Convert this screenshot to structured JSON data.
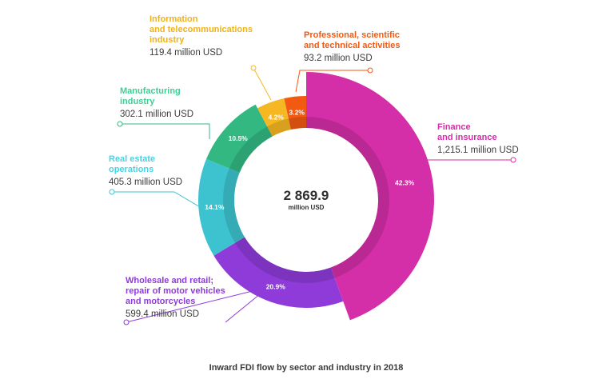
{
  "chart_data": {
    "type": "donut",
    "title": "Inward FDI flow by sector and industry in 2018",
    "total": {
      "value": "2 869.9",
      "unit": "million USD"
    },
    "segments": [
      {
        "name_lines": [
          "Finance",
          "and insurance"
        ],
        "value": 1215.1,
        "value_label": "1,215.1 million USD",
        "percent": 42.3,
        "percent_label": "42.3%",
        "color": "#d42ea8"
      },
      {
        "name_lines": [
          "Wholesale and retail;",
          "repair of motor vehicles",
          "and motorcycles"
        ],
        "value": 599.4,
        "value_label": "599.4 million USD",
        "percent": 20.9,
        "percent_label": "20.9%",
        "color": "#8e3bd9"
      },
      {
        "name_lines": [
          "Real estate",
          "operations"
        ],
        "value": 405.3,
        "value_label": "405.3 million USD",
        "percent": 14.1,
        "percent_label": "14.1%",
        "color": "#3dc3cf"
      },
      {
        "name_lines": [
          "Manufacturing",
          "industry"
        ],
        "value": 302.1,
        "value_label": "302.1 million USD",
        "percent": 10.5,
        "percent_label": "10.5%",
        "color": "#33b882"
      },
      {
        "name_lines": [
          "Information",
          "and telecommunications",
          "industry"
        ],
        "value": 119.4,
        "value_label": "119.4 million USD",
        "percent": 4.2,
        "percent_label": "4.2%",
        "color": "#f5b722"
      },
      {
        "name_lines": [
          "Professional, scientific",
          "and technical activities"
        ],
        "value": 93.2,
        "value_label": "93.2 million USD",
        "percent": 3.2,
        "percent_label": "3.2%",
        "color": "#f25a12"
      }
    ]
  },
  "colors": {
    "label_finance": "#d42ea8",
    "label_wholesale": "#8e3bd9",
    "label_realestate": "#45d4e6",
    "label_manufacturing": "#3ecf92",
    "label_info": "#f0b21c",
    "label_professional": "#ef5a12"
  }
}
